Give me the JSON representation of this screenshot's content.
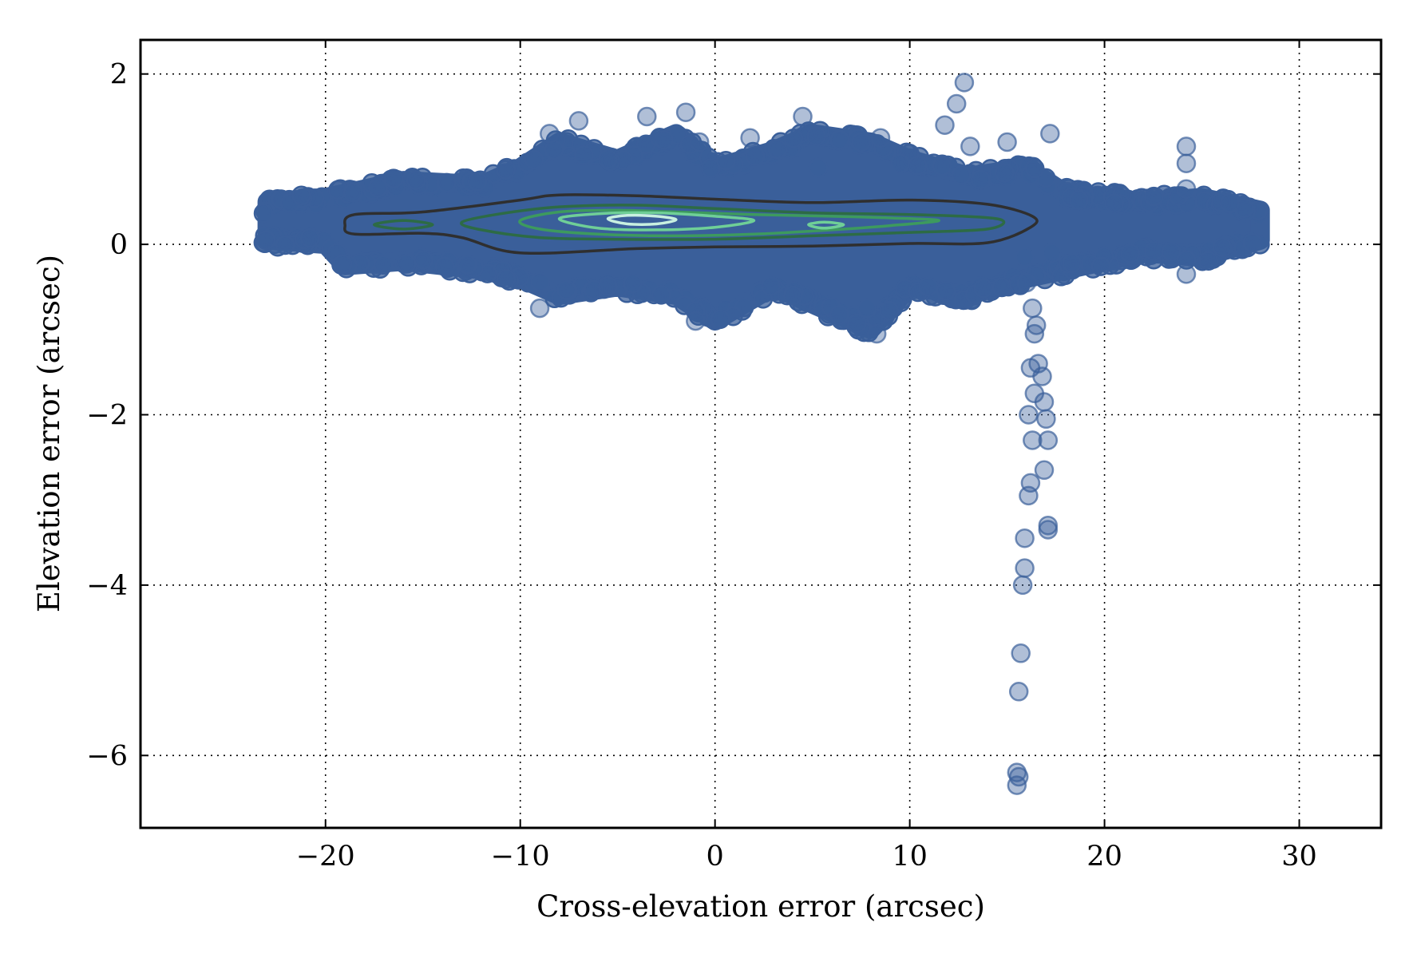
{
  "chart_data": {
    "type": "scatter",
    "title": "",
    "xlabel": "Cross-elevation error (arcsec)",
    "ylabel": "Elevation error (arcsec)",
    "xlim": [
      -29.5,
      34.2
    ],
    "ylim": [
      -6.85,
      2.4
    ],
    "xticks": [
      {
        "value": -20,
        "label": "−20"
      },
      {
        "value": -10,
        "label": "−10"
      },
      {
        "value": 0,
        "label": "0"
      },
      {
        "value": 10,
        "label": "10"
      },
      {
        "value": 20,
        "label": "20"
      },
      {
        "value": 30,
        "label": "30"
      }
    ],
    "yticks": [
      {
        "value": 2,
        "label": "2"
      },
      {
        "value": 0,
        "label": "0"
      },
      {
        "value": -2,
        "label": "−2"
      },
      {
        "value": -4,
        "label": "−4"
      },
      {
        "value": -6,
        "label": "−6"
      }
    ],
    "grid": true,
    "grid_style": "dotted",
    "legend": "none",
    "colors": {
      "points": "#3a5f9a",
      "contour_outer": "#2f2f2f",
      "contour_dark_green": "#2d6b45",
      "contour_mid_green": "#3d9a5e",
      "contour_light_green": "#6fcf97",
      "contour_core": "#c8f0e0"
    },
    "band": {
      "x_range": [
        -23.2,
        28.2
      ],
      "center_y": 0.3,
      "samples": [
        {
          "x": -23,
          "lo": 0.05,
          "hi": 0.5
        },
        {
          "x": -20,
          "lo": 0.0,
          "hi": 0.55
        },
        {
          "x": -19,
          "lo": -0.25,
          "hi": 0.6
        },
        {
          "x": -16,
          "lo": -0.2,
          "hi": 0.75
        },
        {
          "x": -12,
          "lo": -0.3,
          "hi": 0.7
        },
        {
          "x": -10,
          "lo": -0.4,
          "hi": 0.9
        },
        {
          "x": -8,
          "lo": -0.6,
          "hi": 1.2
        },
        {
          "x": -5,
          "lo": -0.5,
          "hi": 1.0
        },
        {
          "x": -2,
          "lo": -0.6,
          "hi": 1.3
        },
        {
          "x": 0,
          "lo": -0.9,
          "hi": 0.9
        },
        {
          "x": 3,
          "lo": -0.5,
          "hi": 1.1
        },
        {
          "x": 5,
          "lo": -0.7,
          "hi": 1.3
        },
        {
          "x": 8,
          "lo": -1.0,
          "hi": 1.2
        },
        {
          "x": 10,
          "lo": -0.5,
          "hi": 1.0
        },
        {
          "x": 13,
          "lo": -0.6,
          "hi": 0.8
        },
        {
          "x": 16,
          "lo": -0.4,
          "hi": 0.9
        },
        {
          "x": 18,
          "lo": -0.3,
          "hi": 0.6
        },
        {
          "x": 22,
          "lo": -0.1,
          "hi": 0.5
        },
        {
          "x": 25,
          "lo": -0.15,
          "hi": 0.55
        },
        {
          "x": 28,
          "lo": 0.05,
          "hi": 0.4
        }
      ]
    },
    "excursions": [
      {
        "x": -7.0,
        "y": 1.45
      },
      {
        "x": -8.5,
        "y": 1.3
      },
      {
        "x": -5.5,
        "y": 1.0
      },
      {
        "x": -3.5,
        "y": 1.5
      },
      {
        "x": -1.5,
        "y": 1.55
      },
      {
        "x": -0.8,
        "y": 1.2
      },
      {
        "x": 1.8,
        "y": 1.25
      },
      {
        "x": 4.5,
        "y": 1.5
      },
      {
        "x": 5.3,
        "y": 0.9
      },
      {
        "x": 7.5,
        "y": 1.2
      },
      {
        "x": 8.5,
        "y": 1.25
      },
      {
        "x": 9.5,
        "y": 0.95
      },
      {
        "x": 11.8,
        "y": 1.4
      },
      {
        "x": 12.4,
        "y": 1.65
      },
      {
        "x": 12.8,
        "y": 1.9
      },
      {
        "x": 13.1,
        "y": 1.15
      },
      {
        "x": 15.0,
        "y": 1.2
      },
      {
        "x": 17.2,
        "y": 1.3
      },
      {
        "x": 24.2,
        "y": 1.15
      },
      {
        "x": 24.2,
        "y": 0.95
      },
      {
        "x": 24.2,
        "y": 0.65
      },
      {
        "x": 24.2,
        "y": -0.35
      },
      {
        "x": 8.3,
        "y": -1.05
      },
      {
        "x": 7.8,
        "y": -0.75
      },
      {
        "x": -9.0,
        "y": -0.75
      },
      {
        "x": -1.0,
        "y": -0.9
      },
      {
        "x": 4.0,
        "y": -0.6
      }
    ],
    "outlier_trail": [
      {
        "x": 15.9,
        "y": -0.15
      },
      {
        "x": 16.0,
        "y": -0.45
      },
      {
        "x": 16.3,
        "y": -0.75
      },
      {
        "x": 16.4,
        "y": -1.05
      },
      {
        "x": 16.6,
        "y": -1.4
      },
      {
        "x": 16.2,
        "y": -1.45
      },
      {
        "x": 16.4,
        "y": -1.75
      },
      {
        "x": 16.1,
        "y": -2.0
      },
      {
        "x": 16.3,
        "y": -2.3
      },
      {
        "x": 16.8,
        "y": -1.55
      },
      {
        "x": 16.9,
        "y": -1.85
      },
      {
        "x": 17.0,
        "y": -2.05
      },
      {
        "x": 17.1,
        "y": -2.3
      },
      {
        "x": 16.9,
        "y": -2.65
      },
      {
        "x": 16.2,
        "y": -2.8
      },
      {
        "x": 16.1,
        "y": -2.95
      },
      {
        "x": 17.1,
        "y": -3.3
      },
      {
        "x": 17.1,
        "y": -3.35
      },
      {
        "x": 15.9,
        "y": -3.45
      },
      {
        "x": 15.9,
        "y": -3.8
      },
      {
        "x": 15.8,
        "y": -4.0
      },
      {
        "x": 15.7,
        "y": -4.8
      },
      {
        "x": 15.6,
        "y": -5.25
      },
      {
        "x": 15.5,
        "y": -6.2
      },
      {
        "x": 15.6,
        "y": -6.25
      },
      {
        "x": 15.5,
        "y": -6.35
      },
      {
        "x": 16.5,
        "y": -0.95
      },
      {
        "x": 17.3,
        "y": -0.1
      }
    ],
    "density_contours": [
      {
        "level": 1,
        "color_key": "contour_outer",
        "points": [
          [
            -19,
            0.22
          ],
          [
            -18.5,
            0.35
          ],
          [
            -15,
            0.38
          ],
          [
            -10,
            0.52
          ],
          [
            -8,
            0.58
          ],
          [
            -4,
            0.57
          ],
          [
            0,
            0.53
          ],
          [
            5,
            0.49
          ],
          [
            10,
            0.52
          ],
          [
            14,
            0.47
          ],
          [
            16.3,
            0.33
          ],
          [
            16.2,
            0.2
          ],
          [
            14,
            0.02
          ],
          [
            10,
            0.01
          ],
          [
            5,
            -0.02
          ],
          [
            0,
            -0.03
          ],
          [
            -4,
            -0.05
          ],
          [
            -10,
            -0.1
          ],
          [
            -13,
            0.08
          ],
          [
            -15,
            0.13
          ],
          [
            -18.5,
            0.12
          ]
        ]
      },
      {
        "level": 2,
        "color_key": "contour_dark_green",
        "points": [
          [
            -13,
            0.26
          ],
          [
            -11,
            0.36
          ],
          [
            -8,
            0.44
          ],
          [
            -4,
            0.46
          ],
          [
            0,
            0.42
          ],
          [
            5,
            0.37
          ],
          [
            10,
            0.35
          ],
          [
            14.5,
            0.3
          ],
          [
            14,
            0.18
          ],
          [
            10,
            0.14
          ],
          [
            5,
            0.1
          ],
          [
            0,
            0.06
          ],
          [
            -5,
            0.06
          ],
          [
            -9,
            0.08
          ],
          [
            -12,
            0.17
          ]
        ]
      },
      {
        "level": 2,
        "color_key": "contour_dark_green",
        "points": [
          [
            -17.5,
            0.23
          ],
          [
            -16,
            0.28
          ],
          [
            -14.5,
            0.23
          ],
          [
            -16,
            0.18
          ]
        ]
      },
      {
        "level": 3,
        "color_key": "contour_mid_green",
        "points": [
          [
            -10,
            0.28
          ],
          [
            -8,
            0.38
          ],
          [
            -5,
            0.4
          ],
          [
            -2,
            0.38
          ],
          [
            2,
            0.35
          ],
          [
            6,
            0.33
          ],
          [
            9,
            0.31
          ],
          [
            11.5,
            0.28
          ],
          [
            9,
            0.22
          ],
          [
            6,
            0.17
          ],
          [
            2,
            0.12
          ],
          [
            -2,
            0.1
          ],
          [
            -6,
            0.12
          ],
          [
            -9,
            0.18
          ]
        ]
      },
      {
        "level": 4,
        "color_key": "contour_light_green",
        "points": [
          [
            -8,
            0.3
          ],
          [
            -6,
            0.36
          ],
          [
            -3,
            0.37
          ],
          [
            0,
            0.33
          ],
          [
            2,
            0.28
          ],
          [
            0,
            0.2
          ],
          [
            -3,
            0.17
          ],
          [
            -6,
            0.19
          ]
        ]
      },
      {
        "level": 4,
        "color_key": "contour_light_green",
        "points": [
          [
            4.8,
            0.23
          ],
          [
            5.6,
            0.26
          ],
          [
            6.6,
            0.23
          ],
          [
            5.6,
            0.19
          ]
        ]
      },
      {
        "level": 5,
        "color_key": "contour_core",
        "points": [
          [
            -5.5,
            0.3
          ],
          [
            -4.5,
            0.34
          ],
          [
            -3,
            0.33
          ],
          [
            -2,
            0.29
          ],
          [
            -3,
            0.24
          ],
          [
            -4.5,
            0.24
          ]
        ]
      }
    ]
  }
}
